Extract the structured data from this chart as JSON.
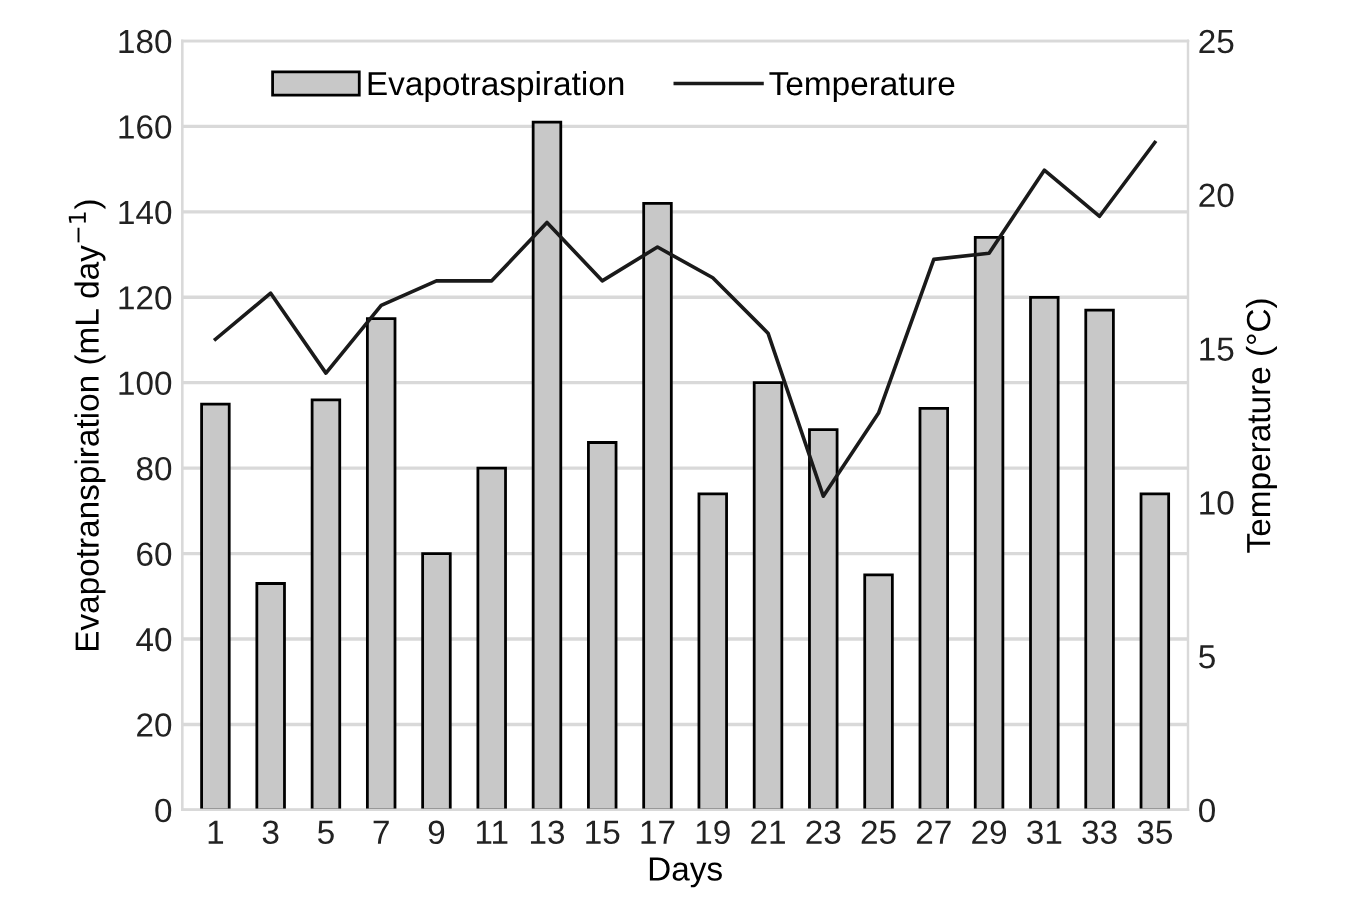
{
  "chart_data": {
    "type": "bar",
    "xlabel": "Days",
    "ylabel": "Evapotranspiration (mL day$^{−1}$)",
    "y2label": "Temperature (°C)",
    "categories": [
      "1",
      "3",
      "5",
      "7",
      "9",
      "11",
      "13",
      "15",
      "17",
      "19",
      "21",
      "23",
      "25",
      "27",
      "29",
      "31",
      "33",
      "35"
    ],
    "series": [
      {
        "name": "Evapotraspiration",
        "color": "#c8c8c8",
        "values": [
          95,
          53,
          96,
          115,
          60,
          80,
          161,
          86,
          142,
          74,
          100,
          89,
          55,
          94,
          134,
          120,
          117,
          74
        ]
      },
      {
        "name": "Temperature",
        "type": "line",
        "axis": "y2",
        "color": "#1a1a1a",
        "values": [
          15.3,
          16.8,
          14.2,
          16.4,
          17.2,
          17.2,
          19.1,
          17.2,
          18.3,
          17.3,
          15.5,
          10.2,
          12.9,
          17.9,
          18.1,
          20.8,
          19.3,
          21.7
        ]
      }
    ],
    "ylim": [
      0,
      180
    ],
    "yticks": [
      0,
      20,
      40,
      60,
      80,
      100,
      120,
      140,
      160,
      180
    ],
    "y2lim": [
      0,
      25
    ],
    "y2ticks": [
      0,
      5,
      10,
      15,
      20,
      25
    ],
    "grid": "y",
    "legend": "top left",
    "marker": "none",
    "line_style": "solid"
  }
}
